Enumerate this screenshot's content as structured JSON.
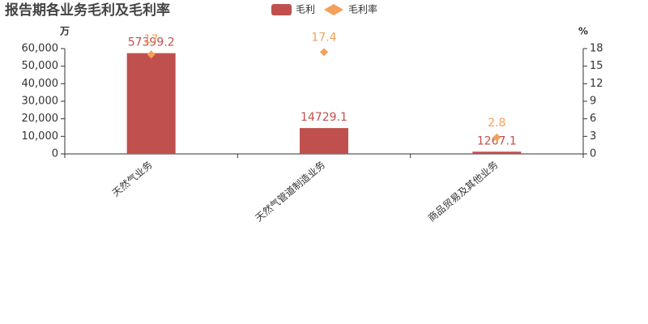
{
  "chart_data": {
    "type": "combo",
    "title": "报告期各业务毛利及毛利率",
    "y_unit": "万",
    "y2_unit": "%",
    "categories": [
      "天然气业务",
      "天然气管道制造业务",
      "商品贸易及其他业务"
    ],
    "series": [
      {
        "name": "毛利",
        "type": "bar",
        "color": "#c0504d",
        "values": [
          57399.2,
          14729.1,
          1267.1
        ]
      },
      {
        "name": "毛利率",
        "type": "scatter",
        "axis": "y2",
        "color": "#f4a05a",
        "values": [
          17,
          17.4,
          2.8
        ]
      }
    ],
    "ylim": [
      0,
      60000
    ],
    "yticks": [
      0,
      {
        "value": 10000,
        "label": "10,000"
      },
      {
        "value": 20000,
        "label": "20,000"
      },
      {
        "value": 30000,
        "label": "30,000"
      },
      {
        "value": 40000,
        "label": "40,000"
      },
      {
        "value": 50000,
        "label": "50,000"
      },
      {
        "value": 60000,
        "label": "60,000"
      }
    ],
    "y2lim": [
      0,
      18
    ],
    "y2ticks": [
      0,
      3,
      6,
      9,
      12,
      15,
      18
    ]
  }
}
